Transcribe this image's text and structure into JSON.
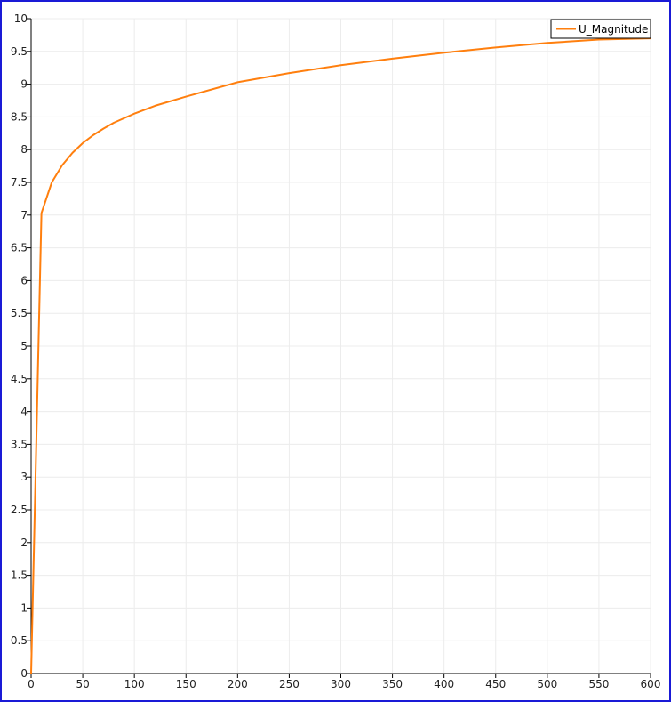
{
  "chart_data": {
    "type": "line",
    "title": "",
    "xlabel": "",
    "ylabel": "",
    "xlim": [
      0,
      600
    ],
    "ylim": [
      0,
      10
    ],
    "xticks": [
      0,
      50,
      100,
      150,
      200,
      250,
      300,
      350,
      400,
      450,
      500,
      550,
      600
    ],
    "yticks": [
      0,
      0.5,
      1,
      1.5,
      2,
      2.5,
      3,
      3.5,
      4,
      4.5,
      5,
      5.5,
      6,
      6.5,
      7,
      7.5,
      8,
      8.5,
      9,
      9.5,
      10
    ],
    "grid": true,
    "legend_position": "top-right",
    "series": [
      {
        "name": "U_Magnitude",
        "color": "#ff7f0e",
        "x": [
          0,
          10,
          20,
          30,
          40,
          50,
          60,
          70,
          80,
          100,
          120,
          150,
          200,
          250,
          300,
          350,
          400,
          450,
          500,
          550,
          600
        ],
        "y": [
          0,
          7.03,
          7.5,
          7.76,
          7.95,
          8.1,
          8.22,
          8.32,
          8.41,
          8.55,
          8.67,
          8.81,
          9.03,
          9.17,
          9.29,
          9.39,
          9.48,
          9.56,
          9.63,
          9.68,
          9.7
        ]
      }
    ]
  }
}
